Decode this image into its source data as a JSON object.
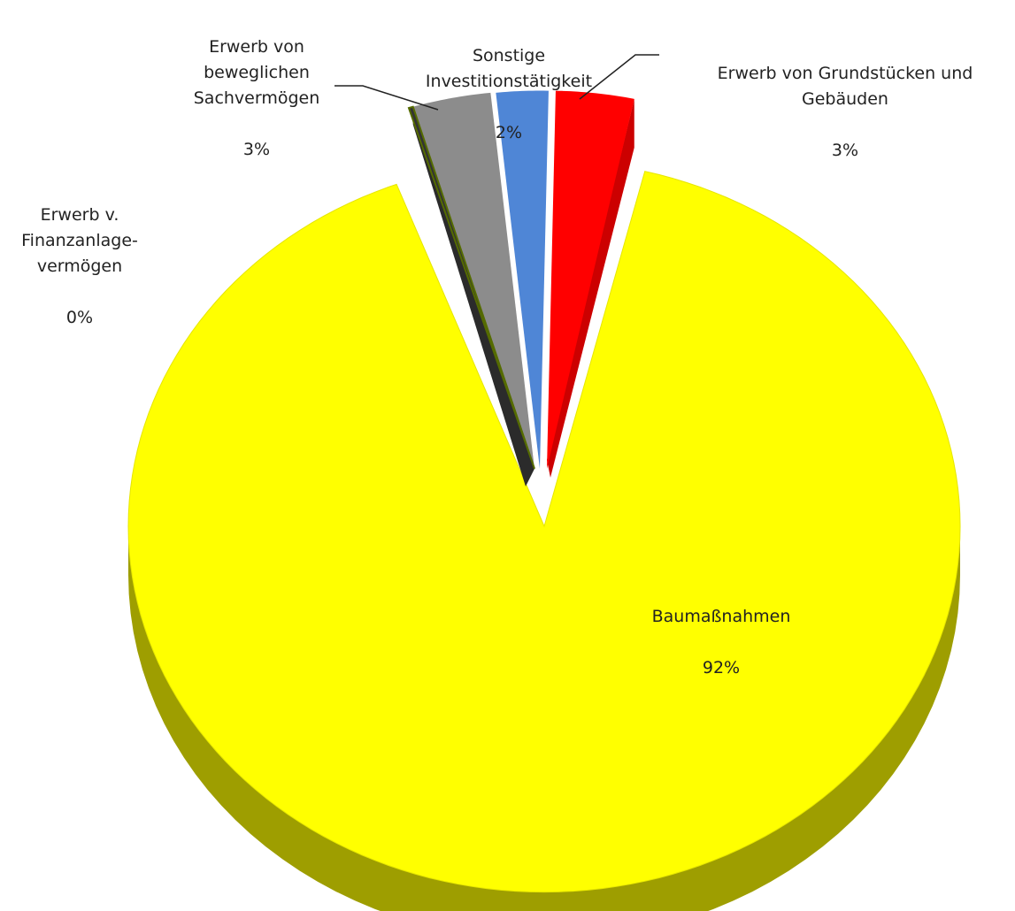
{
  "chart_data": {
    "type": "pie",
    "style": "3d-exploded",
    "title": "",
    "slices": [
      {
        "name": "Baumaßnahmen",
        "label": "Baumaßnahmen",
        "value": 92,
        "percent_label": "92%",
        "color": "#ffff00"
      },
      {
        "name": "Erwerb v. Finanzanlagevermögen",
        "label": "Erwerb v.\nFinanzanlage-\nvermögen",
        "value": 0,
        "percent_label": "0%",
        "color": "#333333"
      },
      {
        "name": "Erwerb von beweglichen Sachvermögen",
        "label": "Erwerb von\nbeweglichen\nSachvermögen",
        "value": 3,
        "percent_label": "3%",
        "color": "#8c8c8c"
      },
      {
        "name": "Sonstige Investitionstätigkeit",
        "label": "Sonstige\nInvestitionstätigkeit",
        "value": 2,
        "percent_label": "2%",
        "color": "#4f86d6"
      },
      {
        "name": "Erwerb von Grundstücken und Gebäuden",
        "label": "Erwerb von Grundstücken und\nGebäuden",
        "value": 3,
        "percent_label": "3%",
        "color": "#ff0000"
      }
    ],
    "legend": "none"
  }
}
